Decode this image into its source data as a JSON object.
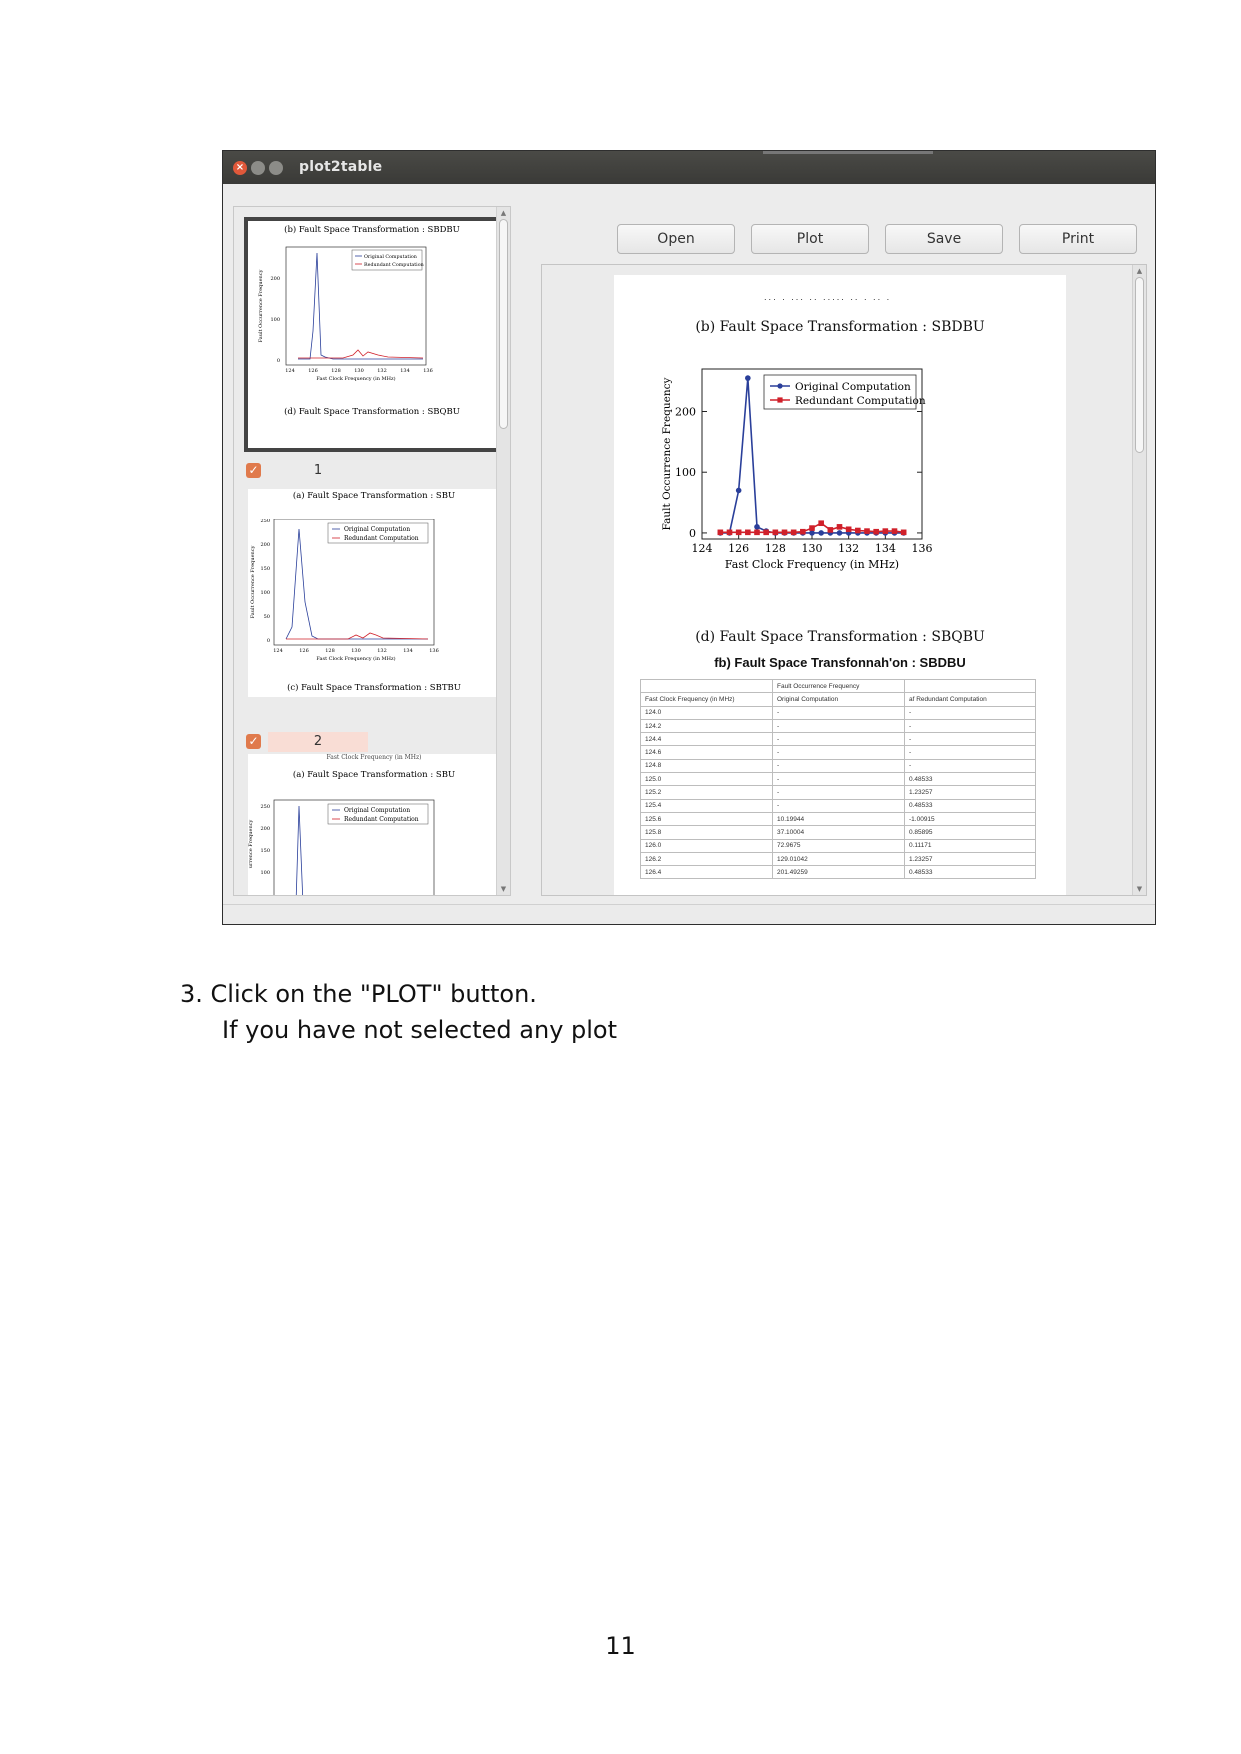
{
  "window": {
    "title": "plot2table",
    "close_glyph": "×"
  },
  "thumbnails": [
    {
      "caption_top": "(b) Fault Space Transformation : SBDBU",
      "ylabel": "Fault Occurrence Frequency",
      "xlabel": "Fast Clock Frequency (in MHz)",
      "yticks": [
        "0",
        "100",
        "200"
      ],
      "xticks": [
        "124",
        "126",
        "128",
        "130",
        "132",
        "134",
        "136"
      ],
      "legend": [
        "Original Computation",
        "Redundant Computation"
      ],
      "caption_bottom": "(d) Fault Space Transformation : SBQBU",
      "selection_number": "1"
    },
    {
      "caption_top": "(a) Fault Space Transformation : SBU",
      "ylabel": "Fault Occurrence Frequency",
      "xlabel": "Fast Clock Frequency (in MHz)",
      "yticks": [
        "0",
        "50",
        "100",
        "150",
        "200",
        "250"
      ],
      "xticks": [
        "124",
        "126",
        "128",
        "130",
        "132",
        "134",
        "136"
      ],
      "legend": [
        "Original Computation",
        "Redundant Computation"
      ],
      "caption_bottom": "(c) Fault Space Transformation : SBTBU",
      "selection_number": "2"
    },
    {
      "cut_text": "Fast Clock Frequency (in MHz)",
      "caption_top": "(a) Fault Space Transformation : SBU",
      "ylabel": "urrence Frequency",
      "yticks": [
        "100",
        "150",
        "200",
        "250"
      ],
      "legend": [
        "Original Computation",
        "Redundant Computation"
      ]
    }
  ],
  "toolbar": {
    "open": "Open",
    "plot": "Plot",
    "save": "Save",
    "print": "Print"
  },
  "preview": {
    "cut_text": "... . ... .. ..... .. . .. .",
    "caption_top": "(b) Fault Space Transformation : SBDBU",
    "caption_bottom": "(d) Fault Space Transformation : SBQBU",
    "table_title": "fb) Fault Space Transfonnah'on : SBDBU",
    "table": {
      "group_header": "Fault Occurrence Frequency",
      "columns": [
        "Fast Clock Frequency (in MHz)",
        "Original Computation",
        "af Redundant Computation"
      ],
      "rows": [
        [
          "124.0",
          "-",
          "-"
        ],
        [
          "124.2",
          "-",
          "-"
        ],
        [
          "124.4",
          "-",
          "-"
        ],
        [
          "124.6",
          "-",
          "-"
        ],
        [
          "124.8",
          "-",
          "-"
        ],
        [
          "125.0",
          "-",
          "0.48533"
        ],
        [
          "125.2",
          "-",
          "1.23257"
        ],
        [
          "125.4",
          "-",
          "0.48533"
        ],
        [
          "125.6",
          "10.19944",
          "-1.00915"
        ],
        [
          "125.8",
          "37.10004",
          "0.85895"
        ],
        [
          "126.0",
          "72.9675",
          "0.11171"
        ],
        [
          "126.2",
          "129.01042",
          "1.23257"
        ],
        [
          "126.4",
          "201.49259",
          "0.48533"
        ]
      ]
    }
  },
  "chart_data": {
    "type": "line",
    "xlabel": "Fast Clock Frequency (in MHz)",
    "ylabel": "Fault Occurrence Frequency",
    "xlim": [
      124,
      136
    ],
    "ylim": [
      -10,
      270
    ],
    "xticks": [
      124,
      126,
      128,
      130,
      132,
      134,
      136
    ],
    "yticks": [
      0,
      100,
      200
    ],
    "legend_position": "top-right",
    "series": [
      {
        "name": "Original Computation",
        "color": "#2a3f9a",
        "x": [
          125.0,
          125.5,
          126.0,
          126.5,
          127.0,
          127.5,
          128.0,
          128.5,
          129.0,
          129.5,
          130.0,
          130.5,
          131.0,
          131.5,
          132.0,
          132.5,
          133.0,
          133.5,
          134.0,
          134.5,
          135.0
        ],
        "values": [
          0,
          0,
          70,
          255,
          10,
          3,
          0,
          0,
          0,
          0,
          0,
          0,
          0,
          0,
          0,
          0,
          0,
          0,
          0,
          0,
          0
        ]
      },
      {
        "name": "Redundant Computation",
        "color": "#d0202a",
        "x": [
          125.0,
          125.5,
          126.0,
          126.5,
          127.0,
          127.5,
          128.0,
          128.5,
          129.0,
          129.5,
          130.0,
          130.5,
          131.0,
          131.5,
          132.0,
          132.5,
          133.0,
          133.5,
          134.0,
          134.5,
          135.0
        ],
        "values": [
          1,
          1,
          1,
          1,
          1,
          1,
          1,
          1,
          1,
          2,
          8,
          16,
          5,
          10,
          6,
          4,
          3,
          2,
          3,
          3,
          1
        ]
      }
    ]
  },
  "document": {
    "step_line1": "3.  Click on the \"PLOT\" button.",
    "step_line2": "If you have not selected any plot",
    "page_number": "11"
  }
}
